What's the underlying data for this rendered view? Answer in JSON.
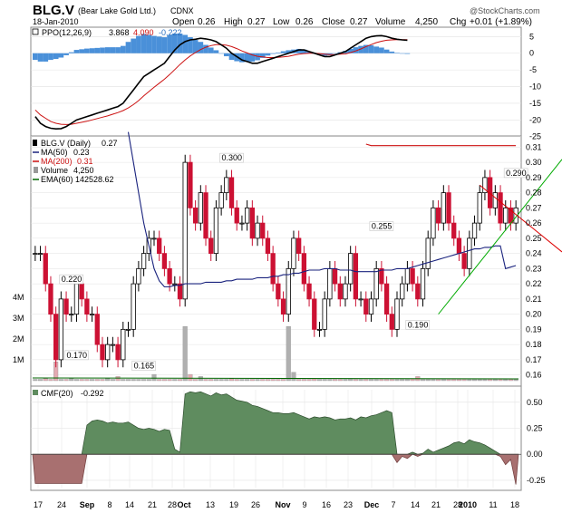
{
  "header": {
    "symbol": "BLG.V",
    "company": "(Bear Lake Gold Ltd.)",
    "exchange": "CDNX",
    "date": "18-Jan-2010",
    "open_label": "Open",
    "open": "0.26",
    "high_label": "High",
    "high": "0.27",
    "low_label": "Low",
    "low": "0.26",
    "close_label": "Close",
    "close": "0.27",
    "volume_label": "Volume",
    "volume": "4,250",
    "chg_label": "Chg",
    "chg": "+0.01 (+1.89%)",
    "watermark": "@StockCharts.com"
  },
  "colors": {
    "up": "#000000",
    "down": "#cc1133",
    "ma50": "#1a237e",
    "ma200": "#cc1111",
    "ema60": "#006600",
    "volume": "#b0b0b0",
    "cmf_pos": "#5f8c5f",
    "cmf_neg": "#a87070",
    "ppo_hist": "#4a90d9",
    "trend_up": "#00aa00",
    "trend_down": "#dd0000"
  },
  "chart_data": [
    {
      "type": "bar",
      "name": "PPO(12,26,9)",
      "legend": {
        "label": "PPO(12,26,9)",
        "ppo": "3.868",
        "signal": "4.090",
        "hist": "-0.222"
      },
      "ylim": [
        -24,
        7
      ],
      "y_ticks": [
        "5",
        "0",
        "-5",
        "-10",
        "-15",
        "-20",
        "-25"
      ],
      "ppo": [
        -19,
        -21,
        -22,
        -22.5,
        -22.7,
        -22.6,
        -22,
        -21,
        -20,
        -19.5,
        -19,
        -18.5,
        -18,
        -17.5,
        -17,
        -16.5,
        -16,
        -15,
        -13,
        -11,
        -9,
        -7,
        -6,
        -5,
        -4,
        -3,
        -1,
        1,
        2.5,
        3.5,
        4,
        4.2,
        4.5,
        4.3,
        4,
        3.5,
        2.5,
        1.5,
        0,
        -1,
        -2,
        -2.5,
        -3,
        -3,
        -2.5,
        -2,
        -1.5,
        -1,
        -0.5,
        0,
        0.5,
        1,
        1,
        0.5,
        0,
        -0.5,
        -1,
        -1,
        -0.5,
        0,
        0.5,
        1.5,
        2.5,
        3.5,
        4.5,
        5,
        5.2,
        5.3,
        5,
        4.5,
        4.2,
        4,
        3.9
      ],
      "signal": [
        -17,
        -18.5,
        -19.5,
        -20.5,
        -21,
        -21.3,
        -21.4,
        -21.3,
        -21,
        -20.7,
        -20.4,
        -20,
        -19.6,
        -19.2,
        -18.8,
        -18.3,
        -17.8,
        -17.2,
        -16.4,
        -15.4,
        -14.2,
        -12.8,
        -11.5,
        -10.2,
        -9,
        -7.8,
        -6.4,
        -4.9,
        -3.4,
        -2,
        -0.8,
        0.2,
        1.1,
        1.8,
        2.3,
        2.6,
        2.6,
        2.4,
        2,
        1.4,
        0.7,
        0.1,
        -0.5,
        -0.9,
        -1.1,
        -1.3,
        -1.3,
        -1.2,
        -1.1,
        -0.9,
        -0.6,
        -0.3,
        -0.1,
        0,
        0,
        -0.1,
        -0.3,
        -0.4,
        -0.4,
        -0.3,
        -0.2,
        0.2,
        0.7,
        1.3,
        2,
        2.6,
        3.2,
        3.6,
        3.9,
        4,
        4.05,
        4.07,
        4.09
      ]
    },
    {
      "type": "line",
      "name": "BLG.V (Daily)",
      "legend": {
        "label": "BLG.V (Daily)",
        "last": "0.27",
        "ma50_label": "MA(50)",
        "ma50": "0.23",
        "ma200_label": "MA(200)",
        "ma200": "0.31",
        "volume_label": "Volume",
        "volume": "4,250",
        "ema60_label": "EMA(60)",
        "ema60": "142528.62"
      },
      "ylim": [
        0.155,
        0.315
      ],
      "y_ticks": [
        "0.31",
        "0.30",
        "0.29",
        "0.28",
        "0.27",
        "0.26",
        "0.25",
        "0.24",
        "0.23",
        "0.22",
        "0.21",
        "0.20",
        "0.19",
        "0.18",
        "0.17",
        "0.16"
      ],
      "volume_ticks": [
        "4M",
        "3M",
        "2M",
        "1M"
      ],
      "annotations": [
        {
          "text": "0.220",
          "x": 7,
          "y": 0.22
        },
        {
          "text": "0.170",
          "x": 8,
          "y": 0.17
        },
        {
          "text": "0.165",
          "x": 21,
          "y": 0.163
        },
        {
          "text": "0.300",
          "x": 38,
          "y": 0.3
        },
        {
          "text": "0.255",
          "x": 67,
          "y": 0.255
        },
        {
          "text": "0.190",
          "x": 74,
          "y": 0.19
        },
        {
          "text": "0.290",
          "x": 93,
          "y": 0.29
        }
      ],
      "close": [
        0.24,
        0.24,
        0.22,
        0.2,
        0.17,
        0.21,
        0.2,
        0.2,
        0.22,
        0.21,
        0.2,
        0.2,
        0.18,
        0.17,
        0.18,
        0.18,
        0.17,
        0.19,
        0.19,
        0.22,
        0.23,
        0.24,
        0.25,
        0.25,
        0.24,
        0.23,
        0.22,
        0.22,
        0.21,
        0.3,
        0.27,
        0.26,
        0.28,
        0.25,
        0.24,
        0.27,
        0.28,
        0.29,
        0.27,
        0.26,
        0.26,
        0.27,
        0.25,
        0.26,
        0.25,
        0.24,
        0.22,
        0.21,
        0.2,
        0.23,
        0.25,
        0.24,
        0.22,
        0.21,
        0.19,
        0.19,
        0.21,
        0.23,
        0.22,
        0.21,
        0.22,
        0.24,
        0.21,
        0.21,
        0.2,
        0.21,
        0.23,
        0.22,
        0.2,
        0.19,
        0.21,
        0.22,
        0.23,
        0.22,
        0.21,
        0.23,
        0.25,
        0.27,
        0.26,
        0.28,
        0.26,
        0.25,
        0.24,
        0.23,
        0.25,
        0.26,
        0.28,
        0.29,
        0.27,
        0.28,
        0.26,
        0.27,
        0.26,
        0.27
      ],
      "ma50": [
        null,
        null,
        null,
        null,
        null,
        null,
        null,
        null,
        null,
        null,
        null,
        null,
        null,
        null,
        null,
        null,
        null,
        null,
        0.32,
        0.3,
        0.28,
        0.26,
        0.245,
        0.23,
        0.222,
        0.218,
        0.218,
        0.219,
        0.219,
        0.22,
        0.22,
        0.22,
        0.22,
        0.221,
        0.221,
        0.221,
        0.221,
        0.222,
        0.222,
        0.223,
        0.223,
        0.223,
        0.223,
        0.224,
        0.224,
        0.224,
        0.225,
        0.225,
        0.226,
        0.226,
        0.227,
        0.227,
        0.228,
        0.229,
        0.229,
        0.229,
        0.23,
        0.23,
        0.23,
        0.229,
        0.229,
        0.229,
        0.228,
        0.228,
        0.228,
        0.228,
        0.228,
        0.229,
        0.229,
        0.229,
        0.23,
        0.23,
        0.23,
        0.231,
        0.232,
        0.233,
        0.234,
        0.235,
        0.236,
        0.237,
        0.238,
        0.239,
        0.24,
        0.241,
        0.242,
        0.243,
        0.243,
        0.244,
        0.244,
        0.245,
        0.245,
        0.23,
        0.231,
        0.232
      ],
      "ma200": [
        null,
        null,
        null,
        null,
        null,
        null,
        null,
        null,
        null,
        null,
        null,
        null,
        null,
        null,
        null,
        null,
        null,
        null,
        null,
        null,
        null,
        null,
        null,
        null,
        null,
        null,
        null,
        null,
        null,
        null,
        null,
        null,
        null,
        null,
        null,
        null,
        null,
        null,
        null,
        null,
        null,
        null,
        null,
        null,
        null,
        null,
        null,
        null,
        null,
        null,
        null,
        null,
        null,
        null,
        null,
        null,
        null,
        null,
        null,
        null,
        null,
        null,
        null,
        null,
        0.312,
        0.311,
        0.311,
        0.311,
        0.311,
        0.311,
        0.311,
        0.311,
        0.311,
        0.311,
        0.311,
        0.311,
        0.311,
        0.311,
        0.311,
        0.311,
        0.311,
        0.311,
        0.311,
        0.311,
        0.311,
        0.311,
        0.311,
        0.311,
        0.311,
        0.311,
        0.311,
        0.311,
        0.311,
        0.311
      ],
      "volume_M": [
        0,
        0,
        0.1,
        0,
        0.9,
        0,
        0,
        0.1,
        0,
        0,
        0,
        0,
        0,
        0,
        0.1,
        0,
        0.2,
        0,
        0,
        0,
        0,
        0,
        0,
        0.3,
        0,
        0,
        0,
        0,
        0,
        2.6,
        0.3,
        0,
        0.2,
        0,
        0,
        0,
        0,
        0,
        0.1,
        0,
        0,
        0,
        0,
        0,
        0,
        0,
        0,
        0,
        0,
        2.6,
        0.4,
        0,
        0,
        0,
        0.1,
        0,
        0,
        0,
        0,
        0,
        0,
        0.1,
        0,
        0,
        0,
        0,
        0,
        0,
        0,
        0,
        0,
        0,
        0,
        0.1,
        0.2,
        0,
        0.1,
        0,
        0,
        0.1,
        0,
        0,
        0,
        0,
        0,
        0,
        0,
        0,
        0,
        0,
        0,
        0,
        0,
        0
      ]
    },
    {
      "type": "area",
      "name": "CMF(20)",
      "legend": {
        "label": "CMF(20)",
        "value": "-0.292"
      },
      "ylim": [
        -0.32,
        0.62
      ],
      "y_ticks": [
        "0.50",
        "0.25",
        "0.00",
        "-0.25"
      ],
      "x_labels": [
        "17",
        "24",
        "Sep",
        "8",
        "14",
        "21",
        "28",
        "Oct",
        "13",
        "19",
        "26",
        "Nov",
        "9",
        "16",
        "23",
        "Dec",
        "7",
        "14",
        "21",
        "28",
        "2010",
        "11",
        "18"
      ],
      "values": [
        -0.28,
        -0.28,
        -0.28,
        -0.28,
        -0.28,
        -0.28,
        -0.28,
        -0.28,
        -0.28,
        -0.28,
        0.28,
        0.32,
        0.33,
        0.32,
        0.3,
        0.31,
        0.3,
        0.3,
        0.31,
        0.28,
        0.25,
        0.24,
        0.25,
        0.24,
        0.22,
        0.24,
        0.23,
        0.05,
        0.02,
        0.58,
        0.6,
        0.59,
        0.6,
        0.58,
        0.56,
        0.59,
        0.57,
        0.58,
        0.55,
        0.52,
        0.51,
        0.5,
        0.47,
        0.46,
        0.44,
        0.42,
        0.4,
        0.4,
        0.39,
        0.39,
        0.4,
        0.38,
        0.36,
        0.34,
        0.36,
        0.35,
        0.36,
        0.35,
        0.33,
        0.34,
        0.34,
        0.35,
        0.33,
        0.36,
        0.35,
        0.37,
        0.38,
        0.4,
        0.42,
        0.4,
        -0.08,
        -0.02,
        -0.04,
        0.02,
        -0.02,
        0.01,
        0.05,
        0.02,
        0.04,
        0.06,
        0.08,
        0.11,
        0.12,
        0.1,
        0.14,
        0.12,
        0.11,
        0.09,
        0.06,
        0.03,
        -0.02,
        -0.1,
        -0.05,
        -0.29
      ]
    }
  ]
}
